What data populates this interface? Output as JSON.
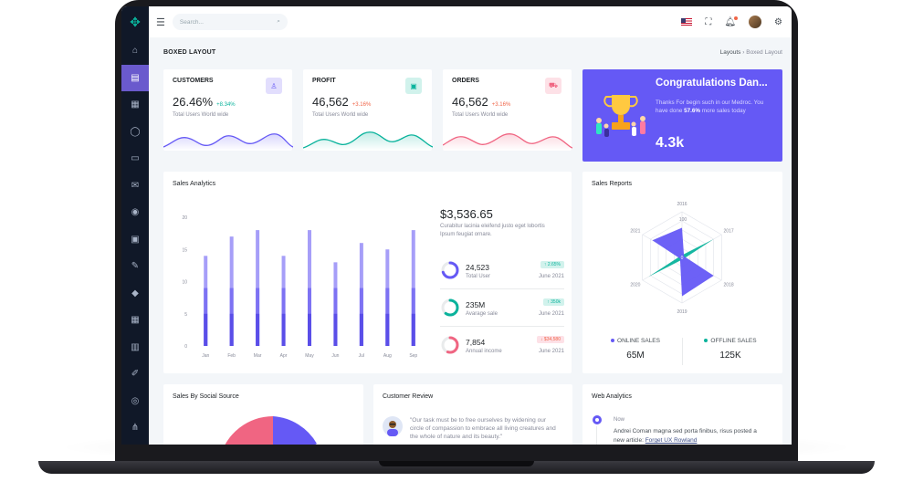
{
  "topbar": {
    "search_placeholder": "Search..."
  },
  "page": {
    "title": "BOXED LAYOUT",
    "breadcrumb": [
      "Layouts",
      "Boxed Layout"
    ]
  },
  "kpis": [
    {
      "title": "CUSTOMERS",
      "value": "26.46%",
      "change": "+8.34%",
      "subtitle": "Total Users World wide",
      "color": "#6559f5",
      "icon": "user-icon"
    },
    {
      "title": "PROFIT",
      "value": "46,562",
      "change": "+3.16%",
      "subtitle": "Total Users World wide",
      "color": "#0ab39c",
      "icon": "wallet-icon"
    },
    {
      "title": "ORDERS",
      "value": "46,562",
      "change": "+3.16%",
      "subtitle": "Total Users World wide",
      "color": "#f06582",
      "icon": "cart-icon"
    }
  ],
  "congrats": {
    "title": "Congratulations Dan...",
    "text_before": "Thanks For begin such in our Medroc. You have done ",
    "percent": "57.6%",
    "text_after": " more sales today",
    "total": "4.3k"
  },
  "sales_analytics": {
    "title": "Sales Analytics",
    "amount": "$3,536.65",
    "description": "Curabitur lacinia eleifend justo eget lobortis Ipsum feugiat ornare.",
    "stats": [
      {
        "value": "24,523",
        "label": "Total User",
        "badge": "2.65%",
        "date": "June 2021",
        "color": "#6559f5",
        "percent": 0.7
      },
      {
        "value": "235M",
        "label": "Avarage sale",
        "badge": "350k",
        "date": "June 2021",
        "color": "#0ab39c",
        "percent": 0.6
      },
      {
        "value": "7,854",
        "label": "Annual income",
        "badge": "$34,580",
        "date": "June 2021",
        "color": "#f06582",
        "percent": 0.55
      }
    ]
  },
  "chart_data": [
    {
      "type": "bar",
      "title": "Sales Analytics",
      "categories": [
        "Jan",
        "Feb",
        "Mar",
        "Apr",
        "May",
        "Jun",
        "Jul",
        "Aug",
        "Sep"
      ],
      "ylim": [
        0,
        20
      ],
      "yticks": [
        0,
        5,
        10,
        15,
        20
      ],
      "series": [
        {
          "values": [
            14,
            17,
            18,
            14,
            18,
            13,
            16,
            15,
            18
          ]
        },
        {
          "values": [
            9,
            9,
            9,
            9,
            9,
            9,
            9,
            9,
            9
          ]
        },
        {
          "values": [
            5,
            5,
            5,
            5,
            5,
            5,
            5,
            5,
            5
          ]
        }
      ],
      "colors": [
        "#a69ef8",
        "#7d72f3",
        "#5a4ee8"
      ]
    },
    {
      "type": "radar",
      "title": "Sales Reports",
      "categories": [
        "2016",
        "2017",
        "2018",
        "2019",
        "2020",
        "2021"
      ],
      "scale_labels": [
        "100"
      ],
      "series": [
        {
          "name": "ONLINE SALES",
          "values": [
            65,
            5,
            80,
            85,
            5,
            75
          ]
        },
        {
          "name": "OFFLINE SALES",
          "values": [
            5,
            80,
            5,
            5,
            85,
            5
          ]
        }
      ],
      "colors": [
        "#6559f5",
        "#0ab39c"
      ]
    }
  ],
  "sales_reports": {
    "title": "Sales Reports",
    "legend": [
      {
        "label": "ONLINE SALES",
        "value": "65M",
        "color": "#6559f5"
      },
      {
        "label": "OFFLINE SALES",
        "value": "125K",
        "color": "#0ab39c"
      }
    ]
  },
  "social": {
    "title": "Sales By Social Source"
  },
  "review": {
    "title": "Customer Review",
    "quote": "\"Our task must be to free ourselves by widening our circle of compassion to embrace all living creatures and the whole of nature and its beauty.\""
  },
  "web_analytics": {
    "title": "Web Analytics",
    "time": "Now",
    "text": "Andrei Coman magna sed porta finibus, risus posted a new article:",
    "link": "Forget UX Rowland"
  }
}
